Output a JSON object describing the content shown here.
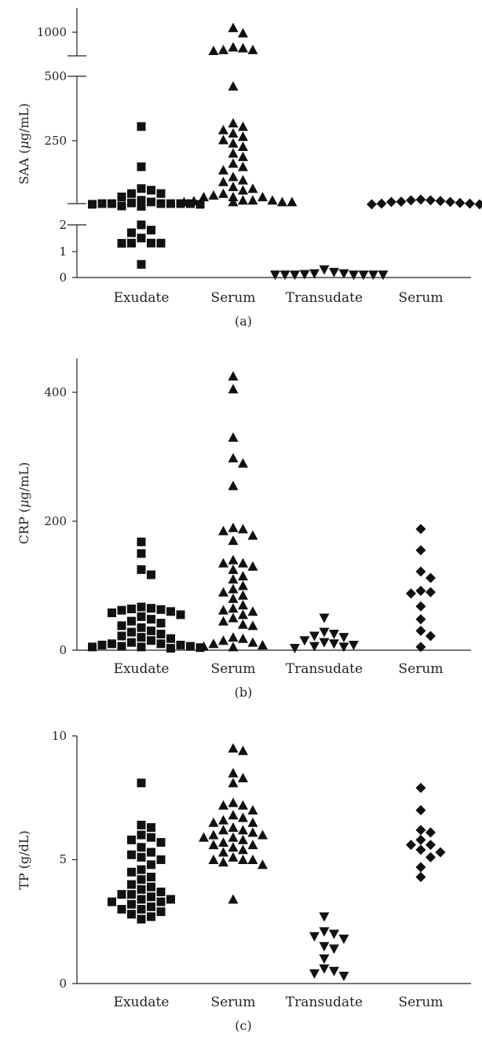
{
  "chart_data": [
    {
      "type": "scatter",
      "panel_label": "(a)",
      "ylabel": "SAA (μg/mL)",
      "ylabel_prefix": "SAA (",
      "ylabel_mu": "μ",
      "ylabel_suffix": "g/mL)",
      "y_scale": "broken",
      "y_ticks": [
        "0",
        "1",
        "2",
        "250",
        "500",
        "1000"
      ],
      "categories": [
        "Exudate",
        "Serum",
        "Transudate",
        "Serum"
      ],
      "markers": [
        "square",
        "triangle-up",
        "triangle-down",
        "diamond"
      ],
      "series": [
        {
          "values": [
            350,
            230,
            165,
            150,
            160,
            150,
            130,
            140,
            120,
            115,
            120,
            120,
            115,
            115,
            120,
            118,
            112,
            116,
            118,
            120,
            125,
            122,
            113,
            118,
            116,
            120,
            2.3,
            2.2,
            2.0,
            1.8,
            1.7,
            1.5,
            2.1,
            1.3,
            0.5
          ]
        },
        {
          "values": [
            1050,
            990,
            820,
            800,
            790,
            800,
            830,
            470,
            360,
            350,
            330,
            340,
            320,
            310,
            300,
            290,
            270,
            260,
            240,
            230,
            220,
            200,
            190,
            185,
            170,
            165,
            160,
            150,
            145,
            140,
            140,
            140,
            130,
            125,
            125,
            130,
            130,
            125,
            125,
            128
          ]
        },
        {
          "values": [
            0.1,
            0.1,
            0.1,
            0.15,
            0.1,
            0.1,
            0.12,
            0.2,
            0.1,
            0.15,
            0.3,
            0.1
          ]
        },
        {
          "values": [
            128,
            132,
            130,
            125,
            120,
            118,
            126,
            130,
            122,
            118,
            125,
            120
          ]
        }
      ]
    },
    {
      "type": "scatter",
      "panel_label": "(b)",
      "ylabel": "CRP (μg/mL)",
      "ylabel_prefix": "CRP (",
      "ylabel_mu": "μ",
      "ylabel_suffix": "g/mL)",
      "ylim": [
        0,
        500
      ],
      "y_ticks": [
        "0",
        "200",
        "400"
      ],
      "categories": [
        "Exudate",
        "Serum",
        "Transudate",
        "Serum"
      ],
      "markers": [
        "square",
        "triangle-up",
        "triangle-down",
        "diamond"
      ],
      "series": [
        {
          "values": [
            168,
            150,
            125,
            117,
            65,
            63,
            62,
            67,
            64,
            60,
            58,
            55,
            52,
            48,
            45,
            42,
            38,
            35,
            30,
            28,
            25,
            22,
            20,
            18,
            15,
            12,
            10,
            8,
            6,
            5,
            5,
            4,
            3,
            6,
            8,
            10
          ]
        },
        {
          "values": [
            425,
            405,
            330,
            298,
            290,
            255,
            190,
            188,
            185,
            178,
            170,
            140,
            135,
            135,
            130,
            125,
            115,
            110,
            100,
            95,
            90,
            85,
            80,
            70,
            65,
            62,
            60,
            55,
            50,
            45,
            40,
            38,
            20,
            18,
            15,
            12,
            10,
            8,
            6,
            5
          ]
        },
        {
          "values": [
            50,
            28,
            25,
            22,
            20,
            15,
            12,
            10,
            8,
            6,
            5,
            3
          ]
        },
        {
          "values": [
            188,
            155,
            122,
            112,
            92,
            90,
            88,
            68,
            48,
            30,
            22,
            5
          ]
        }
      ]
    },
    {
      "type": "scatter",
      "panel_label": "(c)",
      "ylabel": "TP (g/dL)",
      "ylim": [
        0,
        10
      ],
      "y_ticks": [
        "0",
        "5",
        "10"
      ],
      "categories": [
        "Exudate",
        "Serum",
        "Transudate",
        "Serum"
      ],
      "markers": [
        "square",
        "triangle-up",
        "triangle-down",
        "diamond"
      ],
      "series": [
        {
          "values": [
            8.1,
            6.4,
            6.3,
            6.0,
            5.9,
            5.8,
            5.7,
            5.5,
            5.3,
            5.2,
            5.1,
            5.0,
            4.8,
            4.6,
            4.5,
            4.3,
            4.2,
            4.0,
            3.9,
            3.8,
            3.7,
            3.6,
            3.5,
            3.4,
            3.3,
            3.3,
            3.2,
            3.1,
            3.0,
            2.9,
            2.8,
            2.7,
            2.6,
            3.0,
            3.4,
            3.6
          ]
        },
        {
          "values": [
            9.5,
            9.4,
            8.5,
            8.3,
            8.1,
            7.3,
            7.2,
            7.2,
            7.0,
            6.8,
            6.7,
            6.6,
            6.5,
            6.3,
            6.2,
            6.2,
            6.1,
            6.0,
            5.9,
            5.9,
            5.8,
            5.7,
            5.6,
            5.6,
            5.5,
            5.4,
            5.3,
            5.1,
            5.0,
            5.0,
            5.0,
            4.9,
            4.8,
            3.4,
            6.5,
            6.0
          ]
        },
        {
          "values": [
            2.7,
            2.1,
            2.0,
            1.9,
            1.8,
            1.5,
            1.4,
            1.0,
            0.6,
            0.5,
            0.4,
            0.3
          ]
        },
        {
          "values": [
            7.9,
            7.0,
            6.2,
            6.1,
            5.8,
            5.6,
            5.6,
            5.4,
            5.3,
            5.1,
            4.7,
            4.3
          ]
        }
      ]
    }
  ]
}
